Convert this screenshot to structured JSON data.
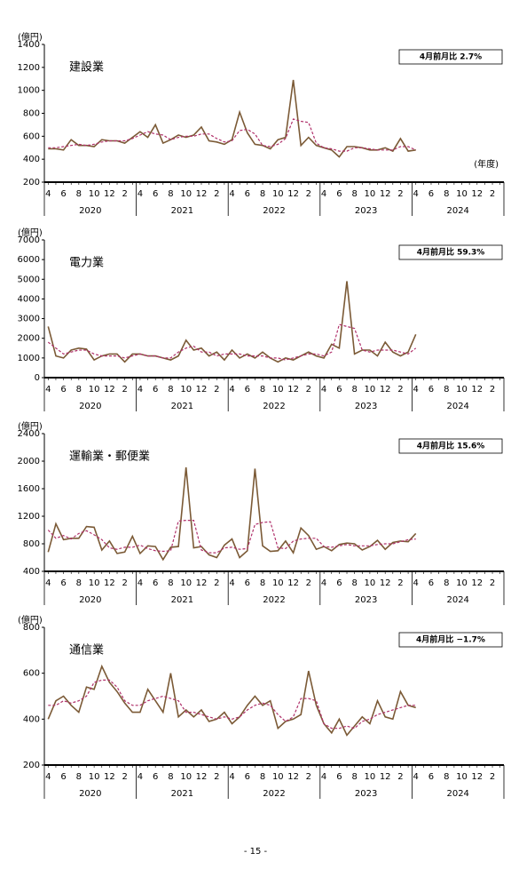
{
  "chart_data": [
    {
      "type": "line",
      "title": "建設業",
      "unit": "(億円)",
      "x_unit": "(年度)",
      "annotation": "4月前月比  2.7%",
      "ylim": [
        200,
        1400
      ],
      "yticks": [
        200,
        400,
        600,
        800,
        1000,
        1200,
        1400
      ],
      "categories": [
        "4",
        null,
        "6",
        null,
        "8",
        null,
        "10",
        null,
        "12",
        null,
        "2",
        null,
        "4",
        null,
        "6",
        null,
        "8",
        null,
        "10",
        null,
        "12",
        null,
        "2",
        null,
        "4",
        null,
        "6",
        null,
        "8",
        null,
        "10",
        null,
        "12",
        null,
        "2",
        null,
        "4",
        null,
        "6",
        null,
        "8",
        null,
        "10",
        null,
        "12",
        null,
        "2",
        null,
        "4",
        null,
        "6",
        null,
        "8",
        null,
        "10",
        null,
        "12",
        null,
        "2",
        null
      ],
      "years": [
        "2020",
        "2021",
        "2022",
        "2023",
        "2024"
      ],
      "series": [
        {
          "color": "#7b5a36",
          "dash": false,
          "values": [
            490,
            490,
            480,
            570,
            520,
            520,
            510,
            570,
            560,
            560,
            540,
            590,
            640,
            590,
            700,
            540,
            570,
            610,
            590,
            610,
            680,
            560,
            550,
            530,
            570,
            810,
            630,
            530,
            520,
            490,
            570,
            590,
            1090,
            520,
            590,
            520,
            500,
            480,
            420,
            510,
            510,
            500,
            480,
            480,
            500,
            470,
            580,
            470,
            480,
            null,
            null,
            null,
            null,
            null,
            null,
            null,
            null,
            null,
            null,
            null
          ]
        },
        {
          "color": "#b0306a",
          "dash": true,
          "values": [
            500,
            500,
            510,
            520,
            530,
            520,
            530,
            550,
            560,
            560,
            560,
            580,
            610,
            640,
            620,
            610,
            570,
            590,
            600,
            600,
            620,
            620,
            580,
            550,
            560,
            650,
            660,
            620,
            520,
            510,
            530,
            580,
            750,
            730,
            720,
            540,
            500,
            490,
            470,
            470,
            500,
            500,
            490,
            480,
            480,
            480,
            510,
            510,
            480,
            null,
            null,
            null,
            null,
            null,
            null,
            null,
            null,
            null,
            null,
            null
          ]
        }
      ]
    },
    {
      "type": "line",
      "title": "電力業",
      "unit": "(億円)",
      "annotation": "4月前月比  59.3%",
      "ylim": [
        0,
        7000
      ],
      "yticks": [
        0,
        1000,
        2000,
        3000,
        4000,
        5000,
        6000,
        7000
      ],
      "categories": [
        "4",
        null,
        "6",
        null,
        "8",
        null,
        "10",
        null,
        "12",
        null,
        "2",
        null,
        "4",
        null,
        "6",
        null,
        "8",
        null,
        "10",
        null,
        "12",
        null,
        "2",
        null,
        "4",
        null,
        "6",
        null,
        "8",
        null,
        "10",
        null,
        "12",
        null,
        "2",
        null,
        "4",
        null,
        "6",
        null,
        "8",
        null,
        "10",
        null,
        "12",
        null,
        "2",
        null,
        "4",
        null,
        "6",
        null,
        "8",
        null,
        "10",
        null,
        "12",
        null,
        "2",
        null
      ],
      "years": [
        "2020",
        "2021",
        "2022",
        "2023",
        "2024"
      ],
      "series": [
        {
          "color": "#7b5a36",
          "dash": false,
          "values": [
            2600,
            1100,
            1000,
            1400,
            1500,
            1450,
            900,
            1100,
            1200,
            1200,
            800,
            1200,
            1200,
            1100,
            1100,
            1000,
            900,
            1100,
            1900,
            1400,
            1500,
            1100,
            1300,
            900,
            1400,
            1000,
            1200,
            1000,
            1300,
            1000,
            800,
            1000,
            900,
            1100,
            1300,
            1100,
            1000,
            1700,
            1500,
            4900,
            1200,
            1400,
            1400,
            1100,
            1800,
            1300,
            1100,
            1300,
            2200,
            null,
            null,
            null,
            null,
            null,
            null,
            null,
            null,
            null,
            null,
            null
          ]
        },
        {
          "color": "#b0306a",
          "dash": true,
          "values": [
            1800,
            1500,
            1200,
            1300,
            1400,
            1400,
            1200,
            1100,
            1100,
            1100,
            1000,
            1100,
            1200,
            1100,
            1100,
            1000,
            1000,
            1300,
            1500,
            1600,
            1300,
            1300,
            1100,
            1200,
            1200,
            1200,
            1100,
            1100,
            1100,
            1000,
            1000,
            900,
            1000,
            1100,
            1200,
            1200,
            1100,
            1300,
            2700,
            2600,
            2500,
            1400,
            1300,
            1400,
            1400,
            1400,
            1300,
            1200,
            1500,
            null,
            null,
            null,
            null,
            null,
            null,
            null,
            null,
            null,
            null,
            null
          ]
        }
      ]
    },
    {
      "type": "line",
      "title": "運輸業・郵便業",
      "unit": "(億円)",
      "annotation": "4月前月比  15.6%",
      "ylim": [
        400,
        2400
      ],
      "yticks": [
        400,
        800,
        1200,
        1600,
        2000,
        2400
      ],
      "categories": [
        "4",
        null,
        "6",
        null,
        "8",
        null,
        "10",
        null,
        "12",
        null,
        "2",
        null,
        "4",
        null,
        "6",
        null,
        "8",
        null,
        "10",
        null,
        "12",
        null,
        "2",
        null,
        "4",
        null,
        "6",
        null,
        "8",
        null,
        "10",
        null,
        "12",
        null,
        "2",
        null,
        "4",
        null,
        "6",
        null,
        "8",
        null,
        "10",
        null,
        "12",
        null,
        "2",
        null,
        "4",
        null,
        "6",
        null,
        "8",
        null,
        "10",
        null,
        "12",
        null,
        "2",
        null
      ],
      "years": [
        "2020",
        "2021",
        "2022",
        "2023",
        "2024"
      ],
      "series": [
        {
          "color": "#7b5a36",
          "dash": false,
          "values": [
            680,
            1090,
            860,
            880,
            880,
            1050,
            1040,
            710,
            840,
            660,
            680,
            910,
            660,
            770,
            760,
            570,
            750,
            760,
            1910,
            740,
            760,
            640,
            600,
            780,
            870,
            600,
            700,
            1890,
            770,
            690,
            700,
            840,
            670,
            1030,
            920,
            720,
            760,
            700,
            790,
            810,
            800,
            710,
            760,
            850,
            720,
            820,
            840,
            830,
            950,
            null,
            null,
            null,
            null,
            null,
            null,
            null,
            null,
            null,
            null,
            null
          ]
        },
        {
          "color": "#b0306a",
          "dash": true,
          "values": [
            1000,
            880,
            920,
            870,
            950,
            990,
            930,
            860,
            740,
            720,
            750,
            750,
            780,
            730,
            700,
            690,
            700,
            1130,
            1140,
            1140,
            710,
            670,
            670,
            740,
            750,
            720,
            730,
            1080,
            1110,
            1120,
            740,
            730,
            840,
            870,
            880,
            880,
            760,
            750,
            770,
            790,
            770,
            770,
            770,
            790,
            800,
            800,
            830,
            860,
            870,
            null,
            null,
            null,
            null,
            null,
            null,
            null,
            null,
            null,
            null,
            null
          ]
        }
      ]
    },
    {
      "type": "line",
      "title": "通信業",
      "unit": "(億円)",
      "annotation": "4月前月比  −1.7%",
      "ylim": [
        200,
        800
      ],
      "yticks": [
        200,
        400,
        600,
        800
      ],
      "categories": [
        "4",
        null,
        "6",
        null,
        "8",
        null,
        "10",
        null,
        "12",
        null,
        "2",
        null,
        "4",
        null,
        "6",
        null,
        "8",
        null,
        "10",
        null,
        "12",
        null,
        "2",
        null,
        "4",
        null,
        "6",
        null,
        "8",
        null,
        "10",
        null,
        "12",
        null,
        "2",
        null,
        "4",
        null,
        "6",
        null,
        "8",
        null,
        "10",
        null,
        "12",
        null,
        "2",
        null,
        "4",
        null,
        "6",
        null,
        "8",
        null,
        "10",
        null,
        "12",
        null,
        "2",
        null
      ],
      "years": [
        "2020",
        "2021",
        "2022",
        "2023",
        "2024"
      ],
      "series": [
        {
          "color": "#7b5a36",
          "dash": false,
          "values": [
            400,
            480,
            500,
            460,
            430,
            540,
            530,
            630,
            560,
            520,
            470,
            430,
            430,
            530,
            480,
            430,
            600,
            410,
            440,
            410,
            440,
            390,
            400,
            430,
            380,
            410,
            460,
            500,
            460,
            480,
            360,
            390,
            400,
            420,
            610,
            460,
            380,
            340,
            400,
            330,
            370,
            410,
            380,
            480,
            410,
            400,
            520,
            460,
            450,
            null,
            null,
            null,
            null,
            null,
            null,
            null,
            null,
            null,
            null,
            null
          ]
        },
        {
          "color": "#b0306a",
          "dash": true,
          "values": [
            460,
            460,
            480,
            470,
            480,
            500,
            560,
            570,
            570,
            540,
            480,
            460,
            460,
            480,
            490,
            500,
            490,
            480,
            430,
            430,
            420,
            410,
            400,
            410,
            400,
            410,
            440,
            460,
            470,
            460,
            420,
            390,
            410,
            490,
            490,
            480,
            380,
            360,
            360,
            370,
            360,
            390,
            400,
            420,
            430,
            440,
            450,
            460,
            460,
            null,
            null,
            null,
            null,
            null,
            null,
            null,
            null,
            null,
            null,
            null
          ]
        }
      ]
    }
  ],
  "footer": {
    "page_number": "- 15 -"
  }
}
